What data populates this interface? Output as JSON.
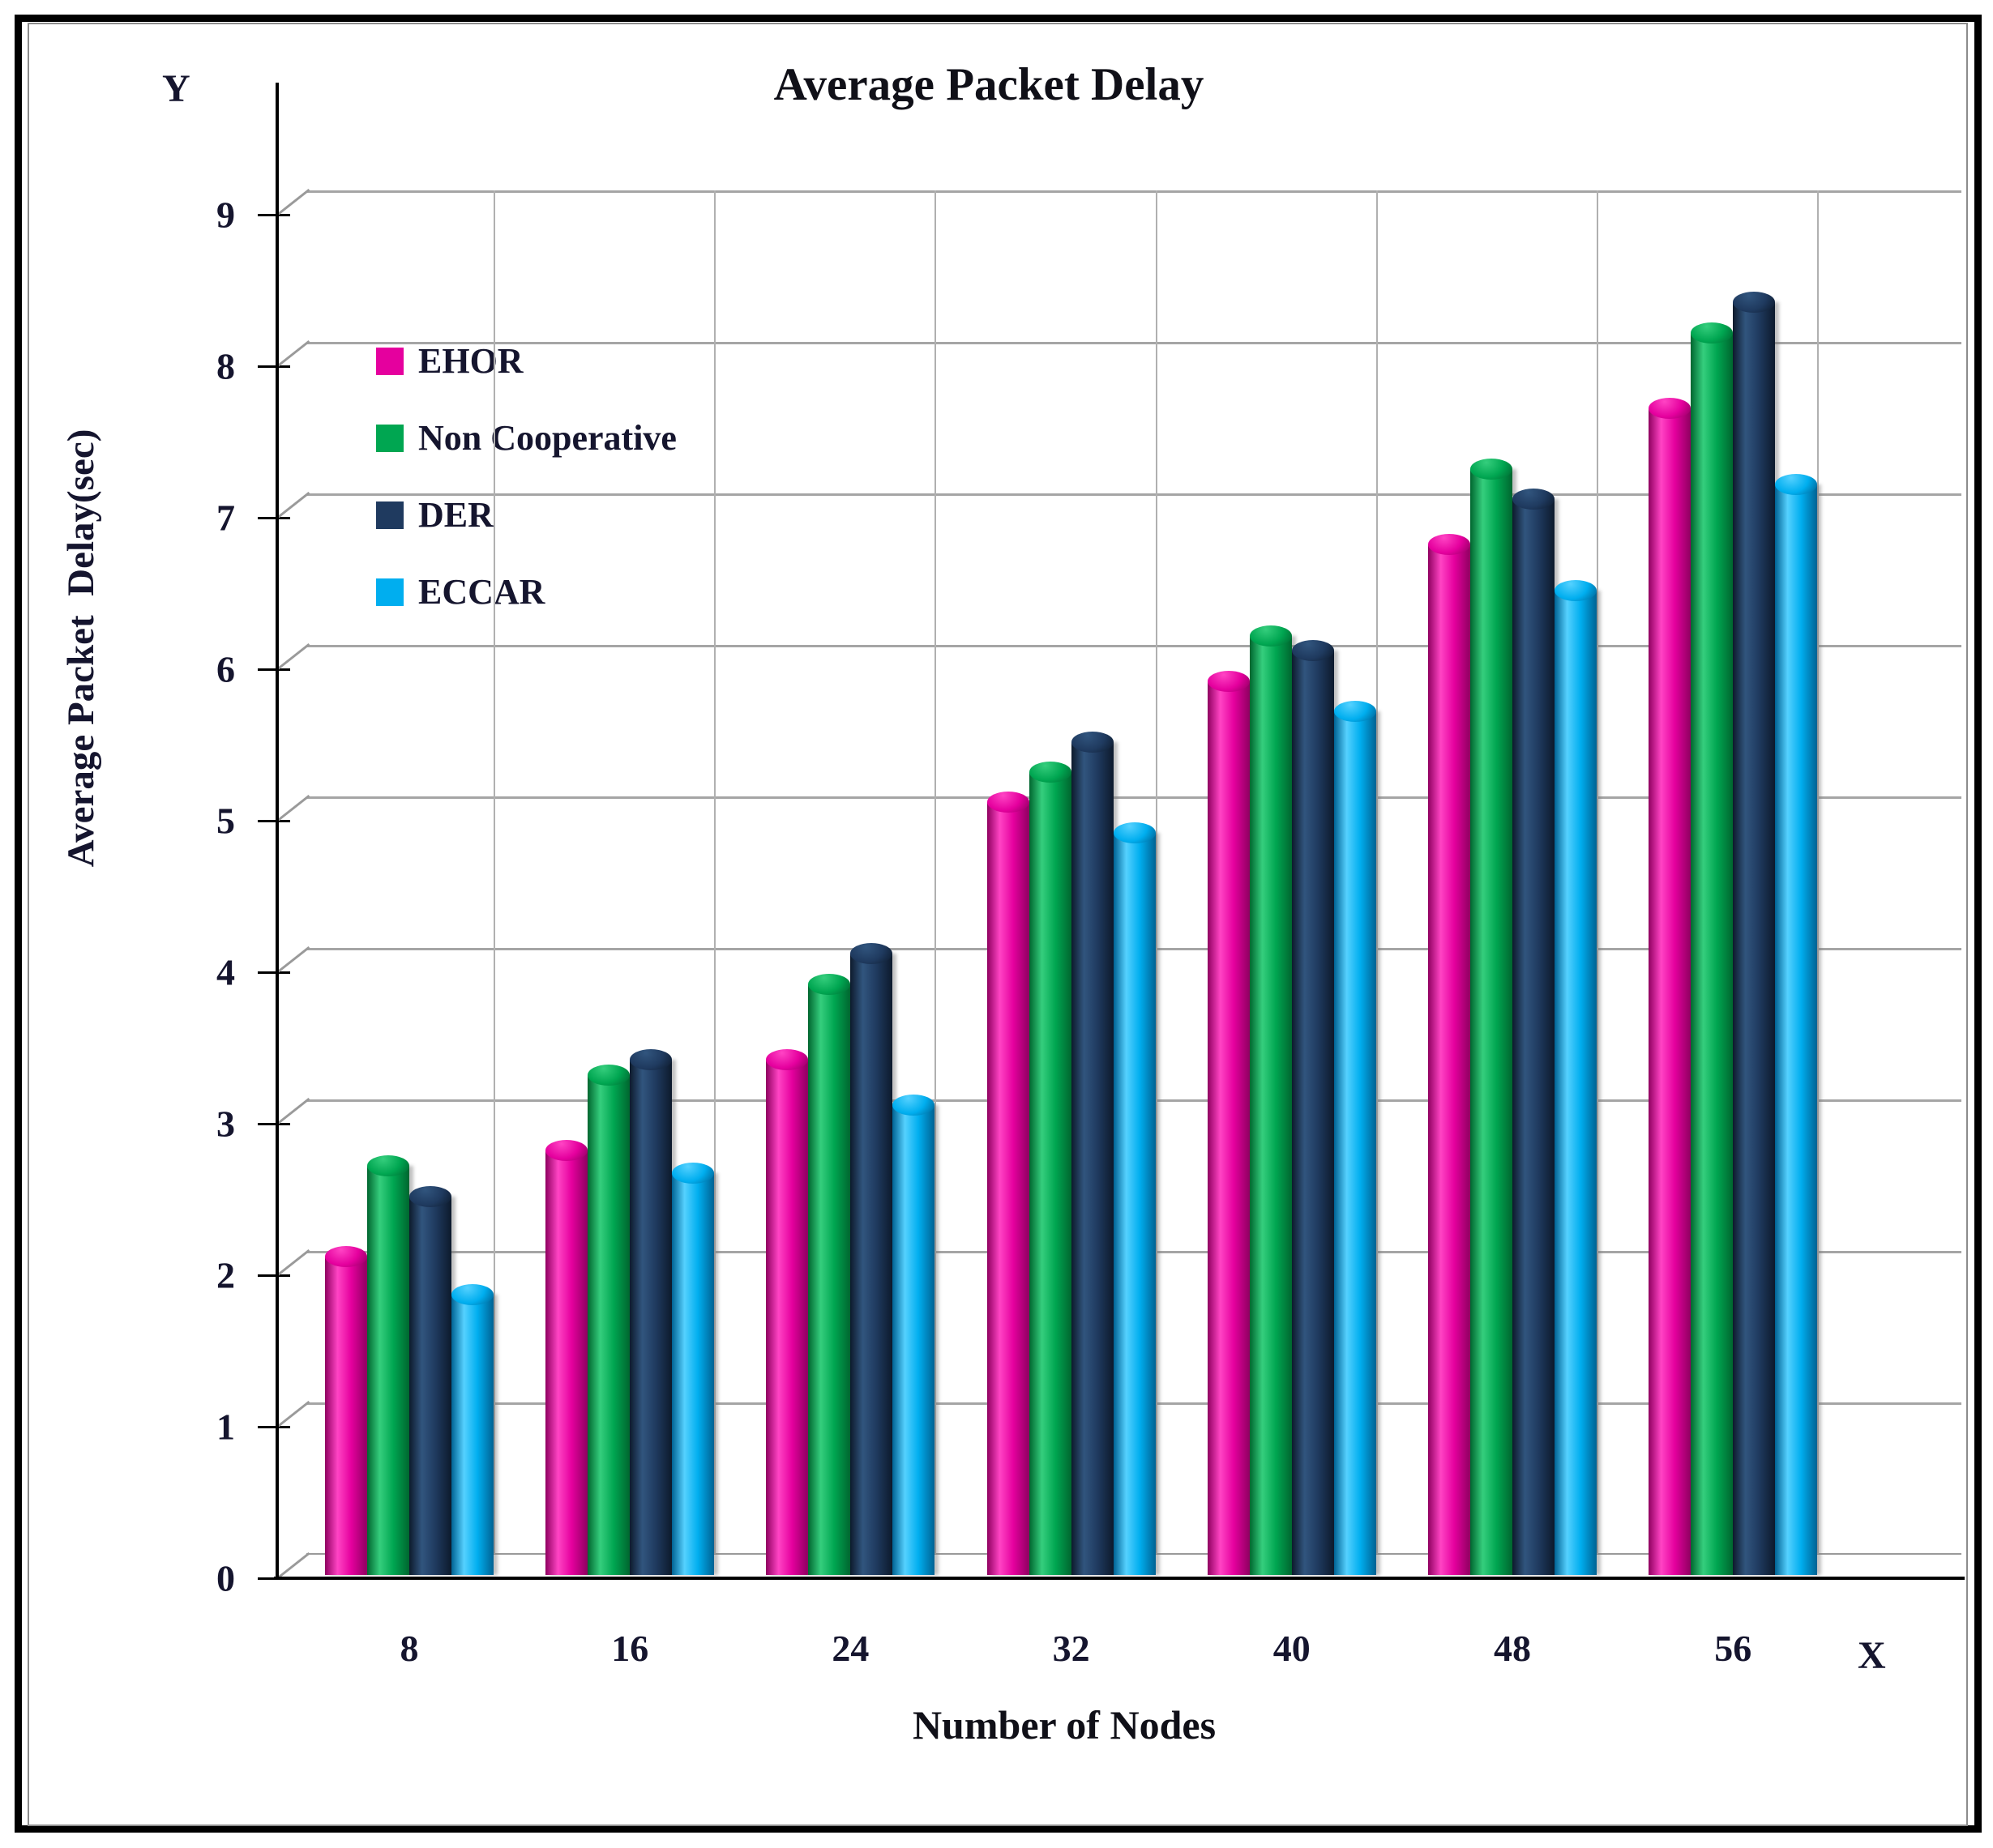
{
  "title": "Average Packet Delay",
  "axis_markers": {
    "y": "Y",
    "x": "X"
  },
  "y_axis": {
    "title": "Average Packet  Delay(sec)",
    "ticks": [
      "0",
      "1",
      "2",
      "3",
      "4",
      "5",
      "6",
      "7",
      "8",
      "9"
    ]
  },
  "x_axis": {
    "title": "Number of Nodes"
  },
  "colors": {
    "gridline": "#A5A5A5",
    "separator": "#B0B0B0",
    "axis": "#000000",
    "text": "#15152E",
    "frame_outer": "#000000",
    "frame_inner": "#8C8C8C"
  },
  "chart_data": {
    "type": "bar",
    "bar_style": "3d-cylinder",
    "title": "Average Packet Delay",
    "xlabel": "Number of Nodes",
    "ylabel": "Average Packet  Delay(sec)",
    "ylim": [
      0,
      9
    ],
    "ytick_step": 1,
    "grid": true,
    "legend_position": "inside-upper-left",
    "categories": [
      "8",
      "16",
      "24",
      "32",
      "40",
      "48",
      "56"
    ],
    "series": [
      {
        "name": "EHOR",
        "color": "#E5009E",
        "color_light": "#FF44C4",
        "color_dark": "#8F0060",
        "values": [
          2.1,
          2.8,
          3.4,
          5.1,
          5.9,
          6.8,
          7.7
        ]
      },
      {
        "name": "Non Cooperative",
        "color": "#00A651",
        "color_light": "#35CE7D",
        "color_dark": "#00662F",
        "values": [
          2.7,
          3.3,
          3.9,
          5.3,
          6.2,
          7.3,
          8.2
        ]
      },
      {
        "name": "DER",
        "color": "#1F3A5F",
        "color_light": "#31557E",
        "color_dark": "#0D1A2C",
        "values": [
          2.5,
          3.4,
          4.1,
          5.5,
          6.1,
          7.1,
          8.4
        ]
      },
      {
        "name": "ECCAR",
        "color": "#00AEEF",
        "color_light": "#55D1FF",
        "color_dark": "#006293",
        "values": [
          1.85,
          2.65,
          3.1,
          4.9,
          5.7,
          6.5,
          7.2
        ]
      }
    ]
  }
}
